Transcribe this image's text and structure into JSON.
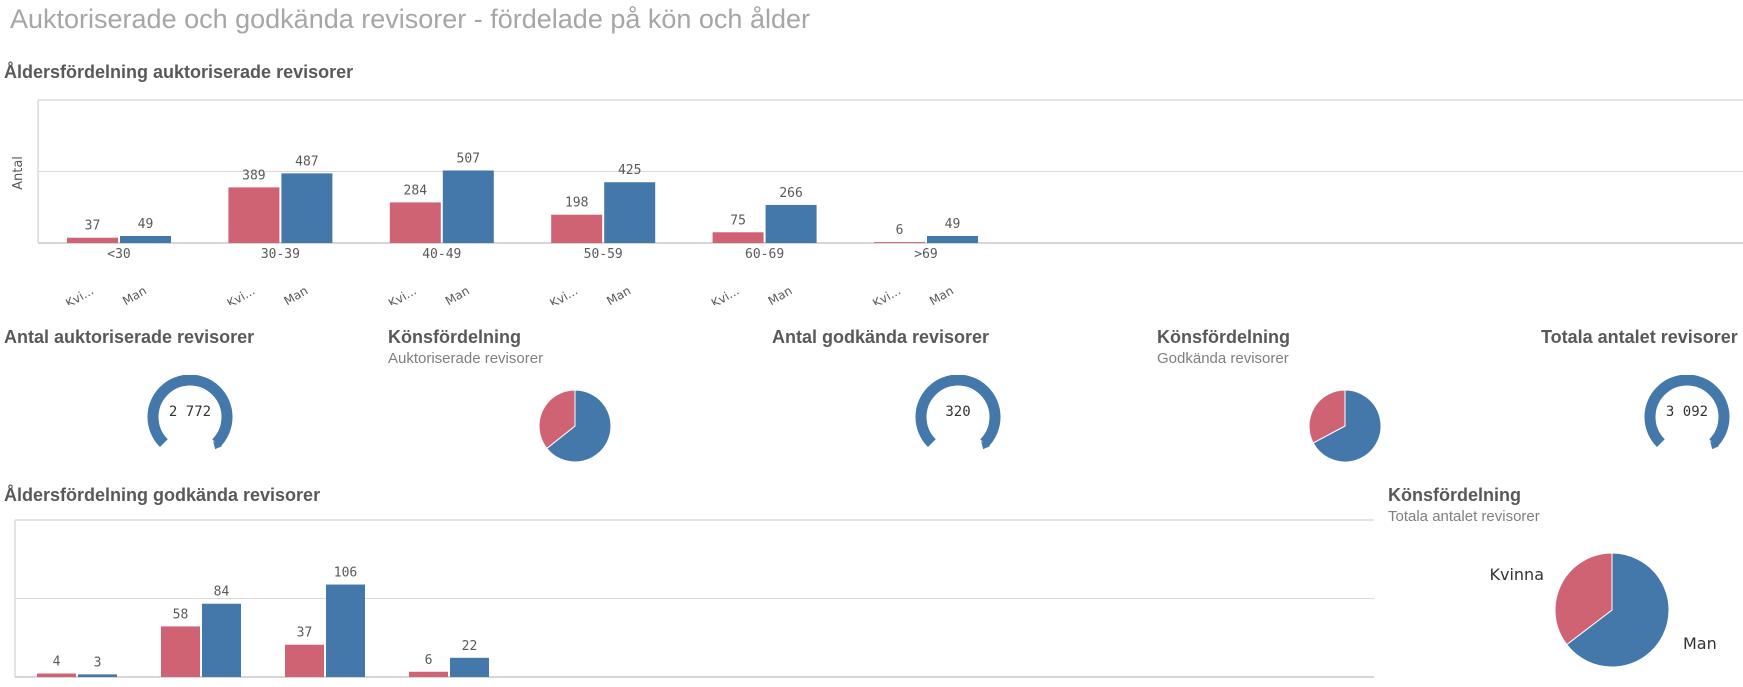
{
  "page": {
    "title": "Auktoriserade och godkända revisorer - fördelade på kön och ålder"
  },
  "colors": {
    "kvinna": "#d06373",
    "man": "#4477aa",
    "gauge_track": "#e8e8e8",
    "axis": "#c8c8c8"
  },
  "chart_auth": {
    "title": "Åldersfördelning auktoriserade revisorer"
  },
  "chart_appr": {
    "title": "Åldersfördelning godkända revisorer"
  },
  "kpi_auth": {
    "title": "Antal auktoriserade revisorer",
    "value": "2 772"
  },
  "pie_auth": {
    "title": "Könsfördelning",
    "subtitle": "Auktoriserade revisorer"
  },
  "kpi_appr": {
    "title": "Antal godkända revisorer",
    "value": "320"
  },
  "pie_appr": {
    "title": "Könsfördelning",
    "subtitle": "Godkända revisorer"
  },
  "kpi_total": {
    "title": "Totala antalet revisorer",
    "value": "3 092"
  },
  "pie_total": {
    "title": "Könsfördelning",
    "subtitle": "Totala antalet revisorer"
  },
  "chart_data": [
    {
      "type": "bar",
      "id": "auth",
      "title": "Åldersfördelning auktoriserade revisorer",
      "ylabel": "Antal",
      "categories": [
        "<30",
        "30-39",
        "40-49",
        "50-59",
        "60-69",
        ">69"
      ],
      "sub_labels": [
        "Kvi...",
        "Man"
      ],
      "series": [
        {
          "values": [
            37,
            389,
            284,
            198,
            75,
            6
          ]
        },
        {
          "values": [
            49,
            487,
            507,
            425,
            266,
            49
          ]
        }
      ],
      "ylim": [
        0,
        1000
      ],
      "grid": true
    },
    {
      "type": "bar",
      "id": "appr",
      "title": "Åldersfördelning godkända revisorer",
      "series": [
        {
          "values": [
            4,
            58,
            37,
            6
          ]
        },
        {
          "values": [
            3,
            84,
            106,
            22
          ]
        }
      ],
      "ylim": [
        0,
        180
      ],
      "grid": true
    },
    {
      "type": "pie",
      "id": "pie_auth",
      "title": "Könsfördelning",
      "subtitle": "Auktoriserade revisorer",
      "values": [
        989,
        1783
      ]
    },
    {
      "type": "pie",
      "id": "pie_appr",
      "title": "Könsfördelning",
      "subtitle": "Godkända revisorer",
      "values": [
        105,
        215
      ]
    },
    {
      "type": "pie",
      "id": "pie_total",
      "title": "Könsfördelning",
      "subtitle": "Totala antalet revisorer",
      "categories": [
        "Kvinna",
        "Man"
      ],
      "values": [
        1094,
        1998
      ]
    }
  ]
}
